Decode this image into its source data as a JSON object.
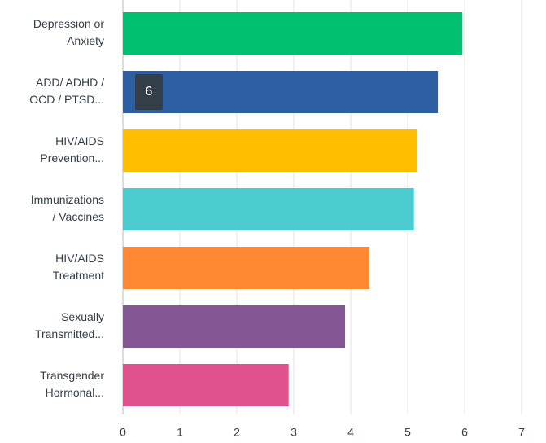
{
  "chart_data": {
    "type": "hbar",
    "categories": [
      [
        "Depression or",
        "Anxiety"
      ],
      [
        "ADD/ ADHD /",
        "OCD / PTSD..."
      ],
      [
        "HIV/AIDS",
        "Prevention..."
      ],
      [
        "Immunizations",
        "/ Vaccines"
      ],
      [
        "HIV/AIDS",
        "Treatment"
      ],
      [
        "Sexually",
        "Transmitted..."
      ],
      [
        "Transgender",
        "Hormonal..."
      ]
    ],
    "values": [
      5.96,
      5.53,
      5.16,
      5.11,
      4.33,
      3.9,
      2.91
    ],
    "colors": [
      "#00bf6f",
      "#2e5fa3",
      "#ffbf00",
      "#4acbd0",
      "#ff8833",
      "#845693",
      "#e0528e"
    ],
    "xlim": [
      0,
      7
    ],
    "xticks": [
      0,
      1,
      2,
      3,
      4,
      5,
      6,
      7
    ],
    "grid": true,
    "tooltip": {
      "category": 1,
      "label": "6"
    }
  }
}
